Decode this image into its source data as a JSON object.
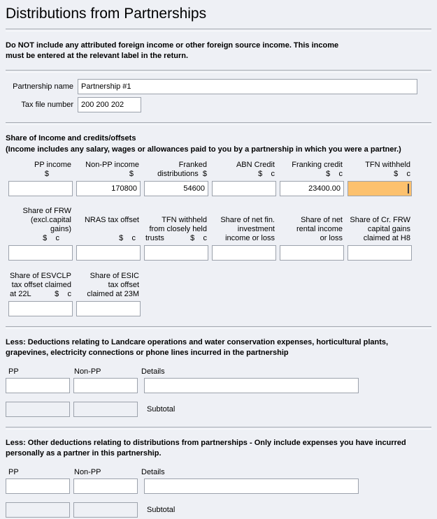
{
  "colors": {
    "focused_field": "#fcc16e",
    "background": "#eef0f5",
    "input_border": "#9ca2ac"
  },
  "page": {
    "title": "Distributions from Partnerships"
  },
  "warning": {
    "line1": "Do NOT include any attributed foreign income or other foreign source income. This income",
    "line2": "must be entered at the relevant label in the return."
  },
  "identity": {
    "name_label": "Partnership name",
    "name_value": "Partnership #1",
    "tfn_label": "Tax file number",
    "tfn_value": "200 200 202"
  },
  "income": {
    "heading": "Share of Income and credits/offsets",
    "subheading": "(Income includes any salary, wages or allowances paid to you by a partnership in which you were a partner.)",
    "r1h": [
      {
        "l1": "PP income",
        "l2": "$"
      },
      {
        "l1": "Non-PP income",
        "l2": "$"
      },
      {
        "l1": "Franked",
        "l2": "distributions  $"
      },
      {
        "l1": "ABN Credit",
        "l2": "$    c"
      },
      {
        "l1": "Franking credit",
        "l2": "$    c"
      },
      {
        "l1": "TFN withheld",
        "l2": "$    c"
      }
    ],
    "r1v": [
      "",
      "170800",
      "54600",
      "",
      "23400.00",
      ""
    ],
    "r2h": [
      {
        "l1": "Share of FRW",
        "l2": "(excl.capital gains)",
        "l3": "$    c"
      },
      {
        "l1": "NRAS tax offset",
        "l2": " ",
        "l3": "$    c"
      },
      {
        "l1": "TFN withheld",
        "l2": "from closely held",
        "l3l": "trusts",
        "l3r": "$    c"
      },
      {
        "l1": "Share of net fin.",
        "l2": "investment",
        "l3": "income or loss"
      },
      {
        "l1": "Share of net",
        "l2": "rental income",
        "l3": "or loss"
      },
      {
        "l1": "Share of Cr. FRW",
        "l2": "capital gains",
        "l3": "claimed at H8"
      }
    ],
    "r2v": [
      "",
      "",
      "",
      "",
      "",
      ""
    ],
    "r3h": [
      {
        "l1": "Share of ESVCLP",
        "l2": "tax offset claimed",
        "l3l": "at 22L",
        "l3r": "$    c"
      },
      {
        "l1": "Share of ESIC",
        "l2": "tax offset",
        "l3": "claimed at 23M"
      }
    ],
    "r3v": [
      "",
      ""
    ]
  },
  "deductions": [
    {
      "heading_line1": "Less: Deductions relating to Landcare operations and water conservation expenses, horticultural plants,",
      "heading_line2": "grapevines, electricity connections or phone lines incurred in the partnership",
      "pp_label": "PP",
      "non_pp_label": "Non-PP",
      "details_label": "Details",
      "pp_value": "",
      "non_pp_value": "",
      "details_value": "",
      "subtotal_pp": "",
      "subtotal_non_pp": "",
      "subtotal_label": "Subtotal"
    },
    {
      "heading_line1": "Less: Other deductions relating to distributions from partnerships - Only include expenses you have incurred",
      "heading_line2": "personally as a partner in this partnership.",
      "pp_label": "PP",
      "non_pp_label": "Non-PP",
      "details_label": "Details",
      "pp_value": "",
      "non_pp_value": "",
      "details_value": "",
      "subtotal_pp": "",
      "subtotal_non_pp": "",
      "subtotal_label": "Subtotal"
    }
  ]
}
